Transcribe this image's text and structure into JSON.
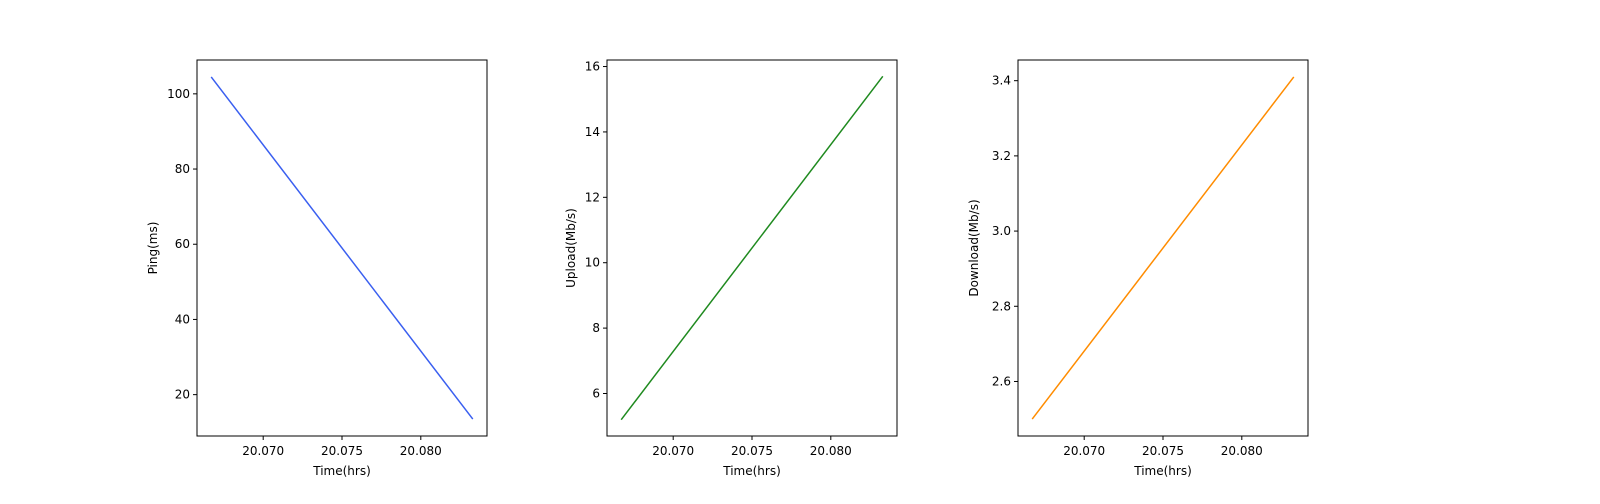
{
  "chart_data": [
    {
      "type": "line",
      "xlabel": "Time(hrs)",
      "ylabel": "Ping(ms)",
      "xlim": [
        20.0658,
        20.0842
      ],
      "ylim": [
        9.0,
        109.0
      ],
      "xticks": [
        20.07,
        20.075,
        20.08
      ],
      "xtick_labels": [
        "20.070",
        "20.075",
        "20.080"
      ],
      "yticks": [
        20,
        40,
        60,
        80,
        100
      ],
      "ytick_labels": [
        "20",
        "40",
        "60",
        "80",
        "100"
      ],
      "grid": false,
      "series": [
        {
          "color": "#3a5ff0",
          "x": [
            20.0667,
            20.0833
          ],
          "y": [
            104.5,
            13.5
          ]
        }
      ]
    },
    {
      "type": "line",
      "xlabel": "Time(hrs)",
      "ylabel": "Upload(Mb/s)",
      "xlim": [
        20.0658,
        20.0842
      ],
      "ylim": [
        4.7,
        16.2
      ],
      "xticks": [
        20.07,
        20.075,
        20.08
      ],
      "xtick_labels": [
        "20.070",
        "20.075",
        "20.080"
      ],
      "yticks": [
        6,
        8,
        10,
        12,
        14,
        16
      ],
      "ytick_labels": [
        "6",
        "8",
        "10",
        "12",
        "14",
        "16"
      ],
      "grid": false,
      "series": [
        {
          "color": "#1f8a1f",
          "x": [
            20.0667,
            20.0833
          ],
          "y": [
            5.2,
            15.7
          ]
        }
      ]
    },
    {
      "type": "line",
      "xlabel": "Time(hrs)",
      "ylabel": "Download(Mb/s)",
      "xlim": [
        20.0658,
        20.0842
      ],
      "ylim": [
        2.455,
        3.455
      ],
      "xticks": [
        20.07,
        20.075,
        20.08
      ],
      "xtick_labels": [
        "20.070",
        "20.075",
        "20.080"
      ],
      "yticks": [
        2.6,
        2.8,
        3.0,
        3.2,
        3.4
      ],
      "ytick_labels": [
        "2.6",
        "2.8",
        "3.0",
        "3.2",
        "3.4"
      ],
      "grid": false,
      "series": [
        {
          "color": "#ff8c00",
          "x": [
            20.0667,
            20.0833
          ],
          "y": [
            2.5,
            3.41
          ]
        }
      ]
    }
  ]
}
